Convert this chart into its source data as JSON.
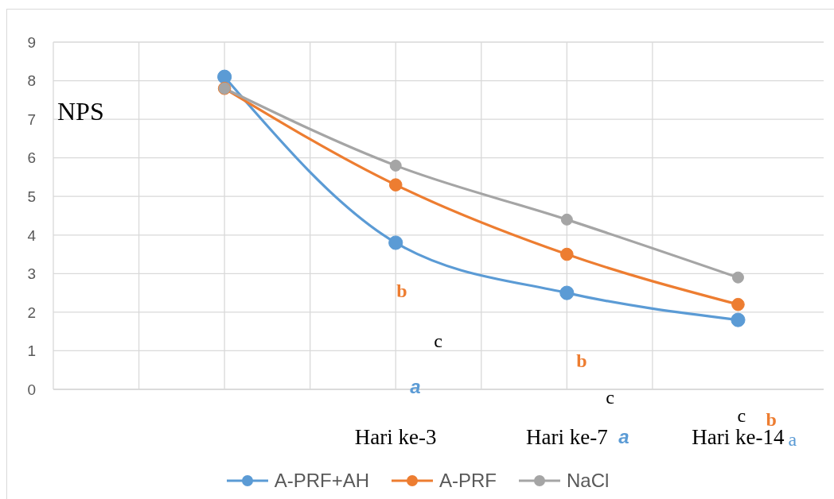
{
  "chart_data": {
    "type": "line",
    "ylabel": "NPS",
    "categories": [
      null,
      "Hari ke-3",
      "Hari ke-7",
      "Hari ke-14"
    ],
    "series": [
      {
        "name": "A-PRF+AH",
        "color": "#5b9bd5",
        "values": [
          8.1,
          3.8,
          2.5,
          1.8
        ]
      },
      {
        "name": "A-PRF",
        "color": "#ed7d31",
        "values": [
          7.8,
          5.3,
          3.5,
          2.2
        ]
      },
      {
        "name": "NaCl",
        "color": "#a5a5a5",
        "values": [
          7.8,
          5.8,
          4.4,
          2.9
        ]
      }
    ],
    "ylim": [
      0,
      9
    ],
    "yticks": [
      0,
      1,
      2,
      3,
      4,
      5,
      6,
      7,
      8,
      9
    ],
    "grid": true,
    "legend": "bottom",
    "marker": "circle",
    "line_style": "solid",
    "annotations": [
      "a",
      "b",
      "c",
      "a",
      "b",
      "c",
      "a",
      "b",
      "c"
    ]
  }
}
